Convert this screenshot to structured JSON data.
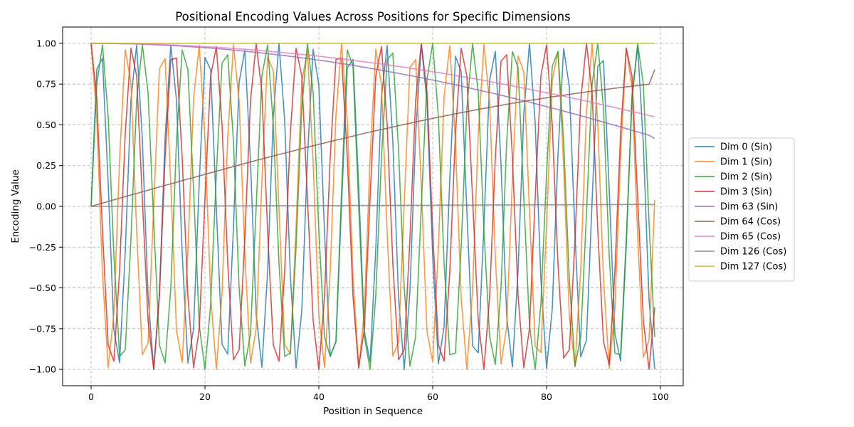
{
  "chart_data": {
    "type": "line",
    "title": "Positional Encoding Values Across Positions for Specific Dimensions",
    "xlabel": "Position in Sequence",
    "ylabel": "Encoding Value",
    "xlim": [
      -5,
      104
    ],
    "ylim": [
      -1.1,
      1.1
    ],
    "xticks": [
      0,
      20,
      40,
      60,
      80,
      100
    ],
    "yticks": [
      -1.0,
      -0.75,
      -0.5,
      -0.25,
      0.0,
      0.25,
      0.5,
      0.75,
      1.0
    ],
    "grid": true,
    "legend_position": "outside-right",
    "x": [
      0,
      1,
      2,
      3,
      4,
      5,
      6,
      7,
      8,
      9,
      10,
      11,
      12,
      13,
      14,
      15,
      16,
      17,
      18,
      19,
      20,
      21,
      22,
      23,
      24,
      25,
      26,
      27,
      28,
      29,
      30,
      31,
      32,
      33,
      34,
      35,
      36,
      37,
      38,
      39,
      40,
      41,
      42,
      43,
      44,
      45,
      46,
      47,
      48,
      49,
      50,
      51,
      52,
      53,
      54,
      55,
      56,
      57,
      58,
      59,
      60,
      61,
      62,
      63,
      64,
      65,
      66,
      67,
      68,
      69,
      70,
      71,
      72,
      73,
      74,
      75,
      76,
      77,
      78,
      79,
      80,
      81,
      82,
      83,
      84,
      85,
      86,
      87,
      88,
      89,
      90,
      91,
      92,
      93,
      94,
      95,
      96,
      97,
      98,
      99
    ],
    "series": [
      {
        "name": "Dim 0 (Sin)",
        "color": "#1f77b4",
        "values": [
          0.0,
          0.841,
          0.909,
          0.141,
          -0.757,
          -0.959,
          -0.279,
          0.657,
          0.989,
          0.412,
          -0.544,
          -1.0,
          -0.537,
          0.42,
          0.991,
          0.65,
          -0.288,
          -0.961,
          -0.751,
          0.15,
          0.913,
          0.837,
          -0.009,
          -0.846,
          -0.906,
          -0.132,
          0.763,
          0.956,
          0.271,
          -0.664,
          -0.988,
          -0.404,
          0.551,
          1.0,
          0.529,
          -0.428,
          -0.992,
          -0.644,
          0.296,
          0.964,
          0.745,
          -0.159,
          -0.917,
          -0.832,
          0.018,
          0.851,
          0.902,
          0.124,
          -0.768,
          -0.954,
          -0.262,
          0.67,
          0.987,
          0.396,
          -0.559,
          -1.0,
          -0.522,
          0.436,
          0.993,
          0.637,
          -0.305,
          -0.966,
          -0.739,
          0.167,
          0.92,
          0.827,
          -0.027,
          -0.856,
          -0.898,
          -0.115,
          0.774,
          0.951,
          0.254,
          -0.677,
          -0.985,
          -0.388,
          0.566,
          0.999,
          0.514,
          -0.444,
          -0.994,
          -0.63,
          0.313,
          0.968,
          0.733,
          -0.176,
          -0.923,
          -0.822,
          0.035,
          0.86,
          0.894,
          0.106,
          -0.779,
          -0.948,
          -0.245,
          0.683,
          0.984,
          0.38,
          -0.573,
          -0.999
        ]
      },
      {
        "name": "Dim 1 (Sin)",
        "color": "#ff7f0e",
        "values": [
          1.0,
          0.54,
          -0.416,
          -0.99,
          -0.654,
          0.284,
          0.96,
          0.754,
          -0.146,
          -0.911,
          -0.839,
          0.004,
          0.844,
          0.907,
          0.137,
          -0.76,
          -0.958,
          -0.275,
          0.66,
          0.989,
          0.408,
          -0.548,
          -1.0,
          -0.533,
          0.424,
          0.991,
          0.647,
          -0.292,
          -0.962,
          -0.748,
          0.154,
          0.915,
          0.834,
          -0.013,
          -0.849,
          -0.904,
          -0.128,
          0.765,
          0.955,
          0.267,
          -0.667,
          -0.988,
          -0.4,
          0.555,
          1.0,
          0.525,
          -0.432,
          -0.992,
          -0.64,
          0.301,
          0.965,
          0.742,
          -0.163,
          -0.918,
          -0.83,
          0.022,
          0.853,
          0.9,
          0.119,
          -0.771,
          -0.952,
          -0.258,
          0.674,
          0.986,
          0.392,
          -0.562,
          -1.0,
          -0.518,
          0.44,
          0.993,
          0.633,
          -0.309,
          -0.967,
          -0.736,
          0.172,
          0.922,
          0.825,
          -0.031,
          -0.858,
          -0.896,
          -0.11,
          0.776,
          0.949,
          0.25,
          -0.68,
          -0.984,
          -0.384,
          0.57,
          0.999,
          0.51,
          -0.448,
          -0.995,
          -0.627,
          0.318,
          0.969,
          0.73,
          -0.18,
          -0.925,
          -0.819,
          0.04
        ]
      },
      {
        "name": "Dim 2 (Sin)",
        "color": "#2ca02c",
        "values": [
          0.0,
          0.75,
          0.99,
          0.55,
          -0.3,
          -0.92,
          -0.88,
          -0.2,
          0.65,
          0.99,
          0.7,
          -0.1,
          -0.85,
          -0.96,
          -0.5,
          0.4,
          0.96,
          0.84,
          0.1,
          -0.73,
          -1.0,
          -0.6,
          0.2,
          0.88,
          0.93,
          0.4,
          -0.5,
          -0.98,
          -0.78,
          0.0,
          0.8,
          0.99,
          0.5,
          -0.35,
          -0.92,
          -0.9,
          -0.25,
          0.6,
          1.0,
          0.7,
          -0.15,
          -0.8,
          -0.92,
          -0.83,
          0.1,
          0.96,
          0.86,
          0.0,
          -0.8,
          -1.0,
          -0.55,
          0.3,
          0.9,
          0.94,
          0.35,
          -0.5,
          -0.98,
          -0.8,
          0.0,
          0.78,
          1.0,
          0.55,
          -0.35,
          -0.91,
          -0.9,
          -0.25,
          0.6,
          1.0,
          0.7,
          -0.15,
          -0.8,
          -0.97,
          -0.5,
          0.4,
          0.95,
          0.85,
          0.05,
          -0.73,
          -1.0,
          -0.6,
          0.2,
          0.86,
          0.95,
          0.4,
          -0.45,
          -0.98,
          -0.8,
          -0.05,
          0.75,
          1.0,
          0.6,
          -0.3,
          -0.9,
          -0.91,
          -0.2,
          0.65,
          1.0,
          0.75,
          -0.1,
          -0.8
        ]
      },
      {
        "name": "Dim 3 (Sin)",
        "color": "#d62728",
        "values": [
          1.0,
          0.66,
          -0.15,
          -0.85,
          -0.95,
          -0.4,
          0.45,
          0.97,
          0.8,
          0.05,
          -0.7,
          -1.0,
          -0.55,
          0.3,
          0.9,
          0.91,
          0.3,
          -0.55,
          -0.99,
          -0.75,
          0.05,
          0.8,
          0.98,
          0.5,
          -0.35,
          -0.94,
          -0.88,
          -0.2,
          0.65,
          1.0,
          0.7,
          -0.15,
          -0.85,
          -0.95,
          -0.4,
          0.45,
          0.97,
          0.8,
          0.05,
          -0.7,
          -1.0,
          -0.55,
          0.3,
          0.9,
          0.91,
          0.3,
          -0.55,
          -0.99,
          -0.75,
          0.05,
          0.8,
          0.98,
          0.5,
          -0.35,
          -0.94,
          -0.88,
          -0.2,
          0.65,
          1.0,
          0.7,
          -0.15,
          -0.85,
          -0.95,
          -0.4,
          0.45,
          0.97,
          0.8,
          0.05,
          -0.7,
          -1.0,
          -0.55,
          0.3,
          0.89,
          0.93,
          0.3,
          -0.55,
          -0.99,
          -0.75,
          0.05,
          0.8,
          0.99,
          0.5,
          -0.35,
          -0.93,
          -0.88,
          -0.2,
          0.65,
          1.0,
          0.7,
          -0.15,
          -0.83,
          -0.97,
          -0.4,
          0.45,
          0.97,
          0.8,
          0.05,
          -0.7,
          -1.0,
          -0.62
        ]
      },
      {
        "name": "Dim 63 (Sin)",
        "color": "#9467bd",
        "formula": "cos(0.0115*x)",
        "values": [
          1.0,
          1.0,
          1.0,
          0.999,
          0.999,
          0.998,
          0.998,
          0.997,
          0.996,
          0.995,
          0.993,
          0.992,
          0.99,
          0.989,
          0.987,
          0.985,
          0.983,
          0.981,
          0.978,
          0.976,
          0.973,
          0.971,
          0.968,
          0.965,
          0.962,
          0.959,
          0.955,
          0.952,
          0.948,
          0.945,
          0.941,
          0.937,
          0.933,
          0.929,
          0.925,
          0.92,
          0.916,
          0.911,
          0.907,
          0.902,
          0.897,
          0.892,
          0.887,
          0.881,
          0.876,
          0.871,
          0.865,
          0.859,
          0.853,
          0.847,
          0.841,
          0.835,
          0.829,
          0.822,
          0.816,
          0.809,
          0.803,
          0.796,
          0.789,
          0.782,
          0.775,
          0.768,
          0.76,
          0.753,
          0.745,
          0.738,
          0.73,
          0.722,
          0.714,
          0.706,
          0.698,
          0.69,
          0.682,
          0.673,
          0.665,
          0.656,
          0.648,
          0.639,
          0.63,
          0.621,
          0.612,
          0.603,
          0.594,
          0.585,
          0.575,
          0.566,
          0.556,
          0.547,
          0.537,
          0.527,
          0.517,
          0.507,
          0.497,
          0.487,
          0.477,
          0.467,
          0.457,
          0.447,
          0.436,
          0.416
        ]
      },
      {
        "name": "Dim 64 (Cos)",
        "color": "#8c564b",
        "values": [
          0.0,
          0.01,
          0.02,
          0.03,
          0.04,
          0.05,
          0.06,
          0.07,
          0.079,
          0.089,
          0.099,
          0.109,
          0.119,
          0.129,
          0.138,
          0.148,
          0.158,
          0.168,
          0.177,
          0.187,
          0.197,
          0.206,
          0.216,
          0.225,
          0.235,
          0.244,
          0.254,
          0.263,
          0.272,
          0.282,
          0.291,
          0.3,
          0.309,
          0.318,
          0.327,
          0.336,
          0.345,
          0.354,
          0.363,
          0.372,
          0.38,
          0.389,
          0.398,
          0.406,
          0.414,
          0.423,
          0.431,
          0.439,
          0.448,
          0.456,
          0.464,
          0.472,
          0.479,
          0.487,
          0.495,
          0.503,
          0.51,
          0.518,
          0.525,
          0.532,
          0.54,
          0.547,
          0.554,
          0.561,
          0.568,
          0.575,
          0.581,
          0.588,
          0.595,
          0.601,
          0.607,
          0.614,
          0.62,
          0.626,
          0.632,
          0.638,
          0.644,
          0.65,
          0.655,
          0.661,
          0.666,
          0.672,
          0.677,
          0.682,
          0.687,
          0.692,
          0.697,
          0.702,
          0.707,
          0.711,
          0.716,
          0.72,
          0.725,
          0.729,
          0.733,
          0.737,
          0.741,
          0.745,
          0.749,
          0.838
        ]
      },
      {
        "name": "Dim 65 (Cos)",
        "color": "#e377c2",
        "formula": "cos(0.01*x)",
        "values": [
          1.0,
          1.0,
          1.0,
          1.0,
          0.999,
          0.999,
          0.998,
          0.998,
          0.997,
          0.996,
          0.995,
          0.994,
          0.993,
          0.992,
          0.99,
          0.989,
          0.987,
          0.986,
          0.984,
          0.982,
          0.98,
          0.978,
          0.976,
          0.974,
          0.971,
          0.969,
          0.966,
          0.964,
          0.961,
          0.958,
          0.955,
          0.952,
          0.949,
          0.946,
          0.943,
          0.939,
          0.936,
          0.932,
          0.929,
          0.925,
          0.921,
          0.917,
          0.913,
          0.909,
          0.905,
          0.9,
          0.896,
          0.891,
          0.887,
          0.882,
          0.878,
          0.873,
          0.868,
          0.863,
          0.858,
          0.853,
          0.848,
          0.842,
          0.837,
          0.832,
          0.826,
          0.82,
          0.815,
          0.809,
          0.803,
          0.797,
          0.791,
          0.785,
          0.779,
          0.773,
          0.765,
          0.759,
          0.752,
          0.746,
          0.739,
          0.732,
          0.725,
          0.718,
          0.711,
          0.704,
          0.697,
          0.69,
          0.683,
          0.675,
          0.668,
          0.661,
          0.653,
          0.646,
          0.638,
          0.63,
          0.622,
          0.614,
          0.606,
          0.598,
          0.59,
          0.582,
          0.574,
          0.566,
          0.557,
          0.549
        ]
      },
      {
        "name": "Dim 126 (Cos)",
        "color": "#7f7f7f",
        "values": [
          0.0,
          0.0,
          0.0,
          0.0,
          0.0,
          0.001,
          0.001,
          0.001,
          0.001,
          0.001,
          0.001,
          0.001,
          0.001,
          0.002,
          0.002,
          0.002,
          0.002,
          0.002,
          0.002,
          0.002,
          0.002,
          0.003,
          0.003,
          0.003,
          0.003,
          0.003,
          0.003,
          0.003,
          0.003,
          0.004,
          0.004,
          0.004,
          0.004,
          0.004,
          0.004,
          0.004,
          0.004,
          0.005,
          0.005,
          0.005,
          0.005,
          0.005,
          0.005,
          0.005,
          0.005,
          0.006,
          0.006,
          0.006,
          0.006,
          0.006,
          0.006,
          0.006,
          0.006,
          0.007,
          0.007,
          0.007,
          0.007,
          0.007,
          0.007,
          0.007,
          0.007,
          0.008,
          0.008,
          0.008,
          0.008,
          0.008,
          0.008,
          0.008,
          0.008,
          0.009,
          0.009,
          0.009,
          0.009,
          0.009,
          0.009,
          0.009,
          0.009,
          0.01,
          0.01,
          0.01,
          0.01,
          0.01,
          0.01,
          0.01,
          0.01,
          0.011,
          0.011,
          0.011,
          0.011,
          0.011,
          0.011,
          0.011,
          0.011,
          0.012,
          0.012,
          0.012,
          0.012,
          0.012,
          0.012,
          0.012
        ]
      },
      {
        "name": "Dim 127 (Cos)",
        "color": "#bcbd22",
        "values": [
          1.0,
          1.0,
          1.0,
          1.0,
          1.0,
          1.0,
          1.0,
          1.0,
          1.0,
          1.0,
          1.0,
          1.0,
          1.0,
          1.0,
          1.0,
          1.0,
          1.0,
          1.0,
          1.0,
          1.0,
          1.0,
          1.0,
          1.0,
          1.0,
          1.0,
          1.0,
          1.0,
          1.0,
          1.0,
          1.0,
          1.0,
          1.0,
          1.0,
          1.0,
          1.0,
          1.0,
          1.0,
          1.0,
          1.0,
          1.0,
          1.0,
          1.0,
          1.0,
          1.0,
          1.0,
          1.0,
          1.0,
          1.0,
          1.0,
          1.0,
          1.0,
          1.0,
          1.0,
          1.0,
          1.0,
          1.0,
          1.0,
          1.0,
          1.0,
          1.0,
          1.0,
          1.0,
          1.0,
          1.0,
          1.0,
          1.0,
          1.0,
          1.0,
          1.0,
          1.0,
          1.0,
          1.0,
          1.0,
          1.0,
          1.0,
          1.0,
          1.0,
          1.0,
          1.0,
          1.0,
          1.0,
          1.0,
          1.0,
          1.0,
          1.0,
          1.0,
          1.0,
          1.0,
          1.0,
          1.0,
          1.0,
          1.0,
          1.0,
          1.0,
          1.0,
          1.0,
          1.0,
          1.0,
          1.0,
          1.0
        ]
      }
    ]
  }
}
